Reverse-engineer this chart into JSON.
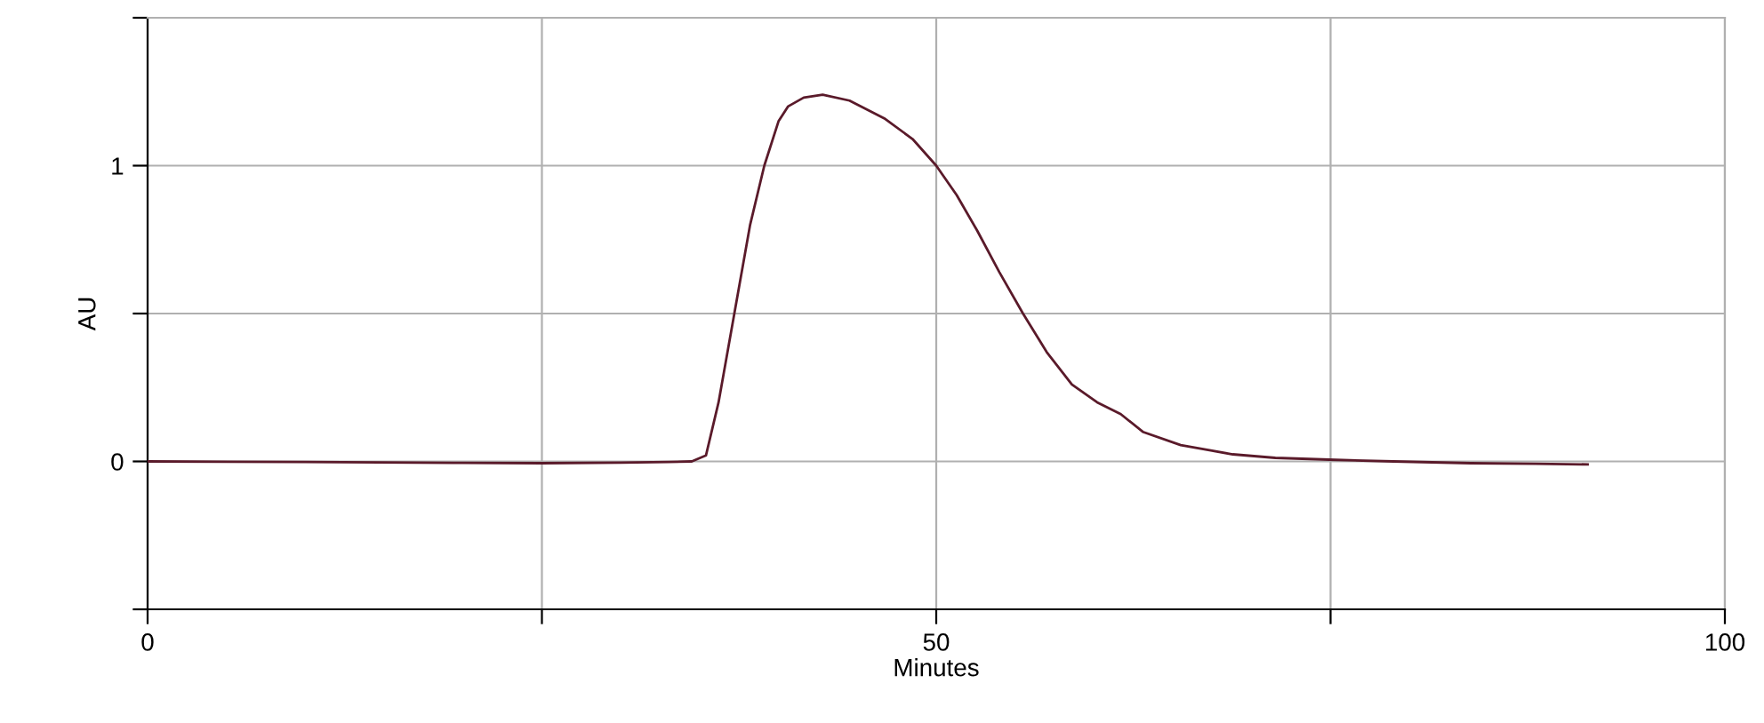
{
  "chart_data": {
    "type": "line",
    "xlabel": "Minutes",
    "ylabel": "AU",
    "series": [
      {
        "color": "#5a1a2a",
        "x": [
          0,
          10,
          20,
          25,
          30,
          33,
          34.5,
          35.4,
          36.2,
          37.2,
          38.2,
          39.1,
          40.0,
          40.6,
          41.6,
          42.8,
          44.5,
          46.7,
          48.5,
          50.0,
          51.3,
          52.6,
          54.0,
          55.5,
          57.0,
          58.6,
          60.2,
          61.7,
          63.1,
          65.5,
          68.8,
          71.5,
          74.9,
          79.0,
          83.9,
          88.0,
          91.3
        ],
        "values": [
          0,
          -0.002,
          -0.005,
          -0.006,
          -0.004,
          -0.002,
          0.0,
          0.02,
          0.2,
          0.5,
          0.8,
          1.0,
          1.15,
          1.2,
          1.23,
          1.24,
          1.22,
          1.16,
          1.09,
          1.0,
          0.9,
          0.78,
          0.64,
          0.5,
          0.37,
          0.26,
          0.2,
          0.16,
          0.1,
          0.055,
          0.024,
          0.012,
          0.006,
          0.0,
          -0.006,
          -0.008,
          -0.01
        ]
      }
    ],
    "xlim": [
      0,
      100
    ],
    "xticks": [
      0,
      {
        "value": 25,
        "label": null
      },
      50,
      {
        "value": 75,
        "label": null
      },
      100
    ],
    "ylim": [
      -0.5,
      1.5
    ],
    "yticks": [
      {
        "value": -0.5,
        "label": null
      },
      0,
      {
        "value": 0.5,
        "label": null
      },
      1,
      {
        "value": 1.5,
        "label": null
      }
    ],
    "grid": true,
    "marker": "none",
    "line_style": "solid"
  }
}
